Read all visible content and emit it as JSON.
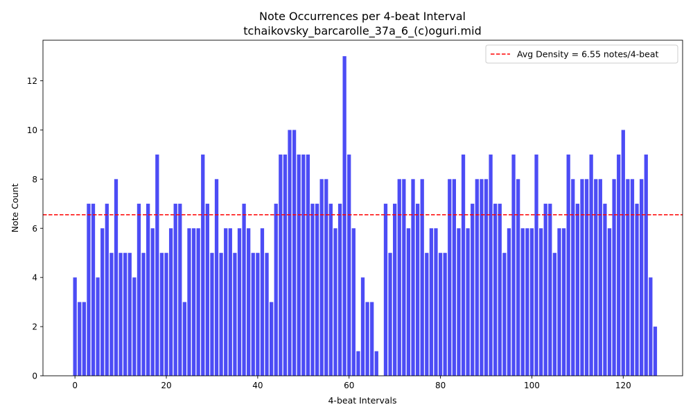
{
  "chart_data": {
    "type": "bar",
    "title": "Note Occurrences per 4-beat Interval",
    "subtitle": "tchaikovsky_barcarolle_37a_6_(c)oguri.mid",
    "xlabel": "4-beat Intervals",
    "ylabel": "Note Count",
    "xlim": [
      -7,
      133
    ],
    "ylim": [
      0,
      13.65
    ],
    "xticks": [
      0,
      20,
      40,
      60,
      80,
      100,
      120
    ],
    "yticks": [
      0,
      2,
      4,
      6,
      8,
      10,
      12
    ],
    "bar_color": "#4c4cf5",
    "x": [
      0,
      1,
      2,
      3,
      4,
      5,
      6,
      7,
      8,
      9,
      10,
      11,
      12,
      13,
      14,
      15,
      16,
      17,
      18,
      19,
      20,
      21,
      22,
      23,
      24,
      25,
      26,
      27,
      28,
      29,
      30,
      31,
      32,
      33,
      34,
      35,
      36,
      37,
      38,
      39,
      40,
      41,
      42,
      43,
      44,
      45,
      46,
      47,
      48,
      49,
      50,
      51,
      52,
      53,
      54,
      55,
      56,
      57,
      58,
      59,
      60,
      61,
      62,
      63,
      64,
      65,
      66,
      67,
      68,
      69,
      70,
      71,
      72,
      73,
      74,
      75,
      76,
      77,
      78,
      79,
      80,
      81,
      82,
      83,
      84,
      85,
      86,
      87,
      88,
      89,
      90,
      91,
      92,
      93,
      94,
      95,
      96,
      97,
      98,
      99,
      100,
      101,
      102,
      103,
      104,
      105,
      106,
      107,
      108,
      109,
      110,
      111,
      112,
      113,
      114,
      115,
      116,
      117,
      118,
      119,
      120,
      121,
      122,
      123,
      124,
      125,
      126,
      127
    ],
    "values": [
      4,
      3,
      3,
      7,
      7,
      4,
      6,
      7,
      5,
      8,
      5,
      5,
      5,
      4,
      7,
      5,
      7,
      6,
      9,
      5,
      5,
      6,
      7,
      7,
      3,
      6,
      6,
      6,
      9,
      7,
      5,
      8,
      5,
      6,
      6,
      5,
      6,
      7,
      6,
      5,
      5,
      6,
      5,
      3,
      7,
      9,
      9,
      10,
      10,
      9,
      9,
      9,
      7,
      7,
      8,
      8,
      7,
      6,
      7,
      13,
      9,
      6,
      1,
      4,
      3,
      3,
      1,
      0,
      7,
      5,
      7,
      8,
      8,
      6,
      8,
      7,
      8,
      5,
      6,
      6,
      5,
      5,
      8,
      8,
      6,
      9,
      6,
      7,
      8,
      8,
      8,
      9,
      7,
      7,
      5,
      6,
      9,
      8,
      6,
      6,
      6,
      9,
      6,
      7,
      7,
      5,
      6,
      6,
      9,
      8,
      7,
      8,
      8,
      9,
      8,
      8,
      7,
      6,
      8,
      9,
      10,
      8,
      8,
      7,
      8,
      9,
      4,
      2
    ],
    "avg_line": {
      "value": 6.55,
      "label": "Avg Density = 6.55 notes/4-beat",
      "color": "#ff0000",
      "style": "dashed"
    },
    "legend": {
      "position": "top-right",
      "entries": [
        "Avg Density = 6.55 notes/4-beat"
      ]
    },
    "grid": false
  }
}
